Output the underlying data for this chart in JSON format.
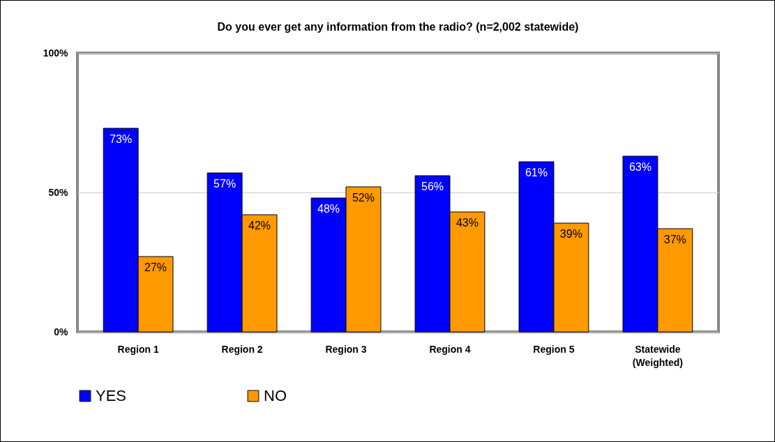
{
  "chart_data": {
    "type": "bar",
    "title": "Do you ever get any information from the radio? (n=2,002 statewide)",
    "categories": [
      "Region 1",
      "Region 2",
      "Region 3",
      "Region 4",
      "Region 5",
      "Statewide (Weighted)"
    ],
    "series": [
      {
        "name": "YES",
        "color": "#0000ff",
        "values": [
          73,
          57,
          48,
          56,
          61,
          63
        ],
        "value_labels": [
          "73%",
          "57%",
          "48%",
          "56%",
          "61%",
          "63%"
        ]
      },
      {
        "name": "NO",
        "color": "#ff9900",
        "values": [
          27,
          42,
          52,
          43,
          39,
          37
        ],
        "value_labels": [
          "27%",
          "42%",
          "52%",
          "43%",
          "39%",
          "37%"
        ]
      }
    ],
    "ylim": [
      0,
      100
    ],
    "yticks": [
      {
        "value": 0,
        "label": "0%"
      },
      {
        "value": 50,
        "label": "50%"
      },
      {
        "value": 100,
        "label": "100%"
      }
    ],
    "grid": "y",
    "legend": "bottom"
  }
}
